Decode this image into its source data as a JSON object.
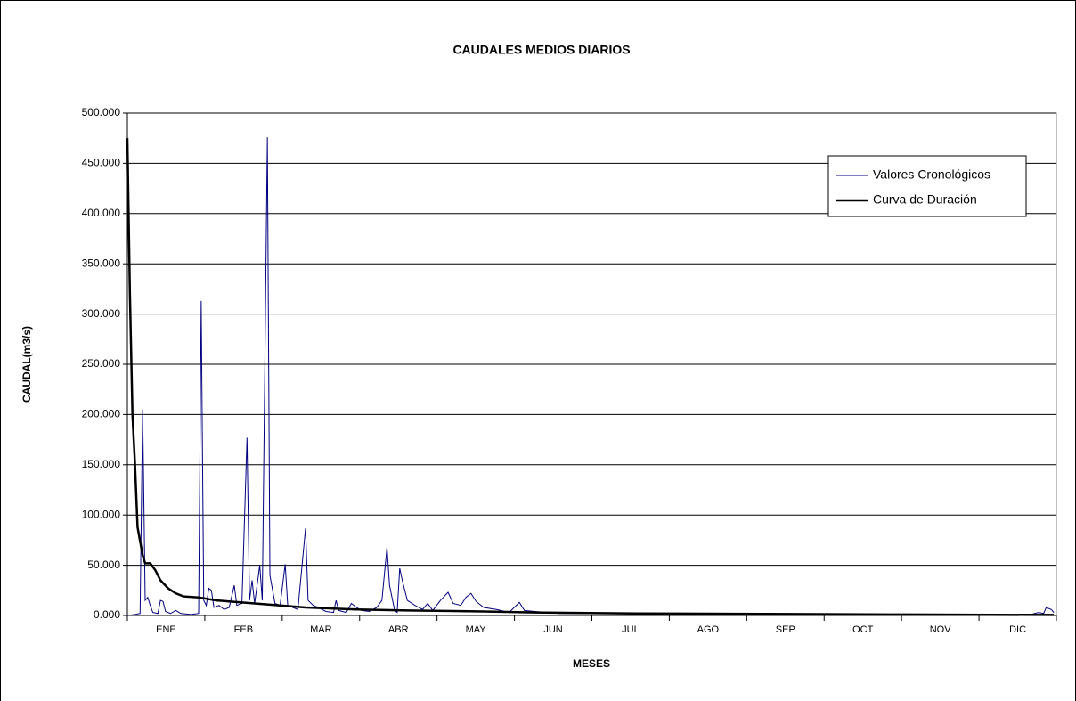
{
  "chart_data": {
    "type": "line",
    "title": "CAUDALES MEDIOS DIARIOS",
    "x_label": "MESES",
    "y_label": "CAUDAL(m3/s)",
    "categories": [
      "ENE",
      "FEB",
      "MAR",
      "ABR",
      "MAY",
      "JUN",
      "JUL",
      "AGO",
      "SEP",
      "OCT",
      "NOV",
      "DIC"
    ],
    "xlim": [
      0,
      365
    ],
    "ylim": [
      0,
      500
    ],
    "yticks": [
      {
        "value": 0,
        "label": "0.000"
      },
      {
        "value": 50,
        "label": "50.000"
      },
      {
        "value": 100,
        "label": "100.000"
      },
      {
        "value": 150,
        "label": "150.000"
      },
      {
        "value": 200,
        "label": "200.000"
      },
      {
        "value": 250,
        "label": "250.000"
      },
      {
        "value": 300,
        "label": "300.000"
      },
      {
        "value": 350,
        "label": "350.000"
      },
      {
        "value": 400,
        "label": "400.000"
      },
      {
        "value": 450,
        "label": "450.000"
      },
      {
        "value": 500,
        "label": "500.000"
      }
    ],
    "grid": true,
    "legend": "upper right",
    "series": [
      {
        "name": "Valores Cronológicos",
        "color": "#000080",
        "x": [
          0,
          3,
          5,
          6,
          7,
          8,
          9,
          10,
          12,
          13,
          14,
          15,
          17,
          19,
          21,
          25,
          28,
          29,
          30,
          31,
          32,
          33,
          34,
          36,
          38,
          40,
          42,
          43,
          45,
          47,
          48,
          49,
          50,
          52,
          53,
          55,
          56,
          58,
          60,
          62,
          63,
          65,
          67,
          70,
          71,
          73,
          75,
          78,
          81,
          82,
          83,
          86,
          88,
          90,
          92,
          95,
          98,
          100,
          102,
          103,
          105,
          106,
          107,
          108,
          110,
          113,
          116,
          118,
          120,
          123,
          126,
          128,
          131,
          133,
          135,
          137,
          140,
          145,
          150,
          154,
          156,
          160,
          165,
          170,
          180,
          200,
          250,
          300,
          355,
          358,
          360,
          361,
          363,
          364
        ],
        "values": [
          0,
          1,
          2,
          205,
          15,
          18,
          10,
          3,
          2,
          15,
          14,
          4,
          2,
          5,
          2,
          1,
          2,
          313,
          15,
          10,
          27,
          25,
          8,
          10,
          6,
          8,
          30,
          10,
          12,
          177,
          15,
          35,
          12,
          50,
          15,
          476,
          40,
          12,
          10,
          51,
          10,
          8,
          6,
          87,
          15,
          10,
          8,
          4,
          3,
          15,
          5,
          3,
          12,
          8,
          5,
          4,
          8,
          15,
          68,
          30,
          5,
          3,
          47,
          35,
          15,
          10,
          6,
          12,
          5,
          15,
          23,
          12,
          10,
          18,
          22,
          14,
          8,
          6,
          3,
          13,
          5,
          4,
          3,
          2,
          2,
          1.5,
          1,
          1,
          1,
          3,
          2,
          8,
          6,
          3
        ]
      },
      {
        "name": "Curva de Duración",
        "color": "#000000",
        "x": [
          0,
          1,
          2,
          3,
          4,
          6,
          7,
          9,
          11,
          13,
          16,
          19,
          22,
          28,
          35,
          45,
          55,
          70,
          90,
          110,
          140,
          160,
          200,
          250,
          300,
          364
        ],
        "values": [
          475,
          320,
          200,
          150,
          88,
          60,
          52,
          52,
          45,
          35,
          27,
          22,
          19,
          18,
          15,
          13,
          11,
          8,
          6,
          5,
          4,
          3,
          2,
          1.5,
          1,
          0.5
        ]
      }
    ]
  }
}
